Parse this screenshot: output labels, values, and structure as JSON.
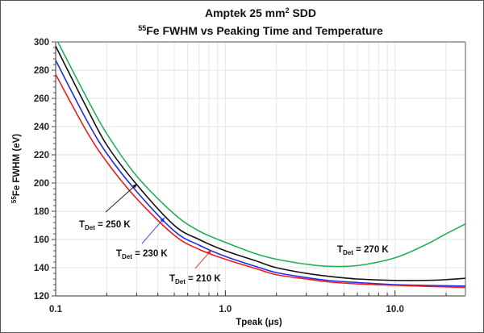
{
  "chart_data": {
    "type": "line",
    "title": "Amptek 25 mm² SDD",
    "title_main": "Amptek 25 mm",
    "title_sup": "2",
    "title_tail": " SDD",
    "subtitle_sup": "55",
    "subtitle_main": "Fe FWHM vs Peaking Time and Temperature",
    "xlabel": "Tpeak (μs)",
    "ylabel_sup": "55",
    "ylabel_main": "Fe FWHM  (eV)",
    "xscale": "log",
    "xlim": [
      0.1,
      26
    ],
    "ylim": [
      120,
      300
    ],
    "xticks": [
      0.1,
      1.0,
      10.0
    ],
    "xtick_labels": [
      "0.1",
      "1.0",
      "10.0"
    ],
    "yticks": [
      120,
      140,
      160,
      180,
      200,
      220,
      240,
      260,
      280,
      300
    ],
    "ytick_labels": [
      "120",
      "140",
      "160",
      "180",
      "200",
      "220",
      "240",
      "260",
      "280",
      "300"
    ],
    "grid": true,
    "x": [
      0.1,
      0.15,
      0.2,
      0.3,
      0.5,
      0.7,
      1.0,
      1.5,
      2.0,
      3.0,
      4.0,
      6.0,
      10.0,
      15.0,
      20.0,
      26.0
    ],
    "series": [
      {
        "name": "TDet = 270 K",
        "color": "#22b05a",
        "values": [
          303,
          262,
          235,
          205,
          178,
          166,
          158,
          150,
          146,
          142.5,
          141,
          141.5,
          147,
          156,
          164,
          171
        ]
      },
      {
        "name": "TDet = 250 K",
        "color": "#111111",
        "values": [
          297,
          255,
          227,
          199,
          170,
          160,
          152,
          145,
          140,
          136,
          134,
          132,
          131,
          131,
          131.5,
          132.5
        ]
      },
      {
        "name": "TDet = 230 K",
        "color": "#1f2ee8",
        "values": [
          287,
          246,
          221,
          194,
          166,
          156,
          148,
          141,
          136.5,
          133,
          131,
          129.5,
          128,
          127.5,
          127.2,
          127
        ]
      },
      {
        "name": "TDet = 210 K",
        "color": "#ee1c1c",
        "values": [
          277,
          238,
          215,
          189,
          163,
          153,
          146,
          139.5,
          135,
          132,
          130,
          128.5,
          127.5,
          126.8,
          126.4,
          126
        ]
      }
    ],
    "annotations": [
      {
        "series": "TDet = 270 K",
        "text_main": "T",
        "text_sub": "Det",
        "text_tail": " = 270 K",
        "color": "#22b05a"
      },
      {
        "series": "TDet = 250 K",
        "text_main": "T",
        "text_sub": "Det",
        "text_tail": " = 250 K",
        "color": "#111111",
        "arrow": true
      },
      {
        "series": "TDet = 230 K",
        "text_main": "T",
        "text_sub": "Det",
        "text_tail": " = 230 K",
        "color": "#1f2ee8",
        "arrow": true
      },
      {
        "series": "TDet = 210 K",
        "text_main": "T",
        "text_sub": "Det",
        "text_tail": " = 210 K",
        "color": "#ee1c1c",
        "arrow": true
      }
    ]
  }
}
